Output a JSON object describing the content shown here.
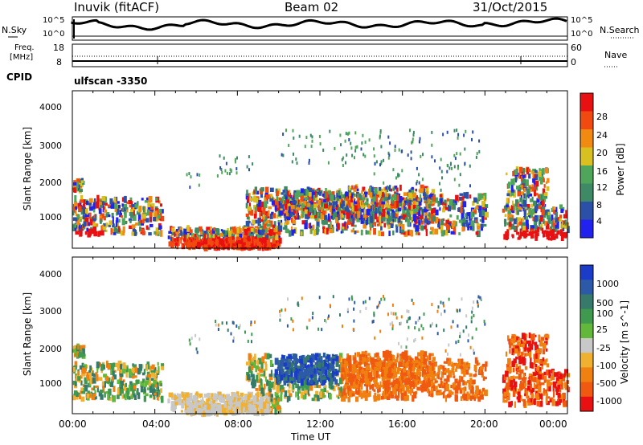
{
  "header": {
    "station": "Inuvik (fitACF)",
    "beam": "Beam 02",
    "date": "31/Oct/2015",
    "cpid_label": "CPID",
    "cpid_value": "ulfscan  -3350"
  },
  "noise_panel": {
    "left_label": "N.Sky",
    "right_label": "N.Search",
    "left_ticks": [
      "10^5",
      "10^0"
    ],
    "right_ticks": [
      "10^5",
      "10^0"
    ]
  },
  "freq_panel": {
    "left_label_1": "Freq.",
    "left_label_2": "[MHz]",
    "right_label": "Nave",
    "left_ticks": [
      "18",
      "8"
    ],
    "right_ticks": [
      "60",
      "0"
    ]
  },
  "colors": {
    "power_scale": [
      "#2222ee",
      "#2c4fa8",
      "#3e8a66",
      "#4fa65a",
      "#d8c020",
      "#f08a10",
      "#f04a10",
      "#e81010"
    ],
    "velocity_scale": [
      "#1a3cc8",
      "#2c5aa8",
      "#357a6a",
      "#3f9a50",
      "#62b83a",
      "#c8c8c8",
      "#f0b030",
      "#f08010",
      "#f05a10",
      "#e81010"
    ]
  },
  "chart_data": [
    {
      "type": "heatmap",
      "name": "power",
      "ylabel": "Slant Range [km]",
      "y_ticks": [
        "4000",
        "3000",
        "2000",
        "1000"
      ],
      "colorbar_label": "Power [dB]",
      "colorbar_ticks": [
        "28",
        "24",
        "20",
        "16",
        "12",
        "8",
        "4"
      ],
      "ylim": [
        200,
        4600
      ]
    },
    {
      "type": "heatmap",
      "name": "velocity",
      "ylabel": "Slant Range [km]",
      "y_ticks": [
        "4000",
        "3000",
        "2000",
        "1000"
      ],
      "colorbar_label": "Velocity [m s^-1]",
      "colorbar_ticks": [
        "1000",
        "500",
        "100",
        "25",
        "-25",
        "-100",
        "-500",
        "-1000"
      ],
      "ylim": [
        200,
        4600
      ]
    }
  ],
  "x_axis": {
    "label": "Time UT",
    "ticks": [
      "00:00",
      "04:00",
      "08:00",
      "12:00",
      "16:00",
      "20:00",
      "00:00"
    ]
  }
}
